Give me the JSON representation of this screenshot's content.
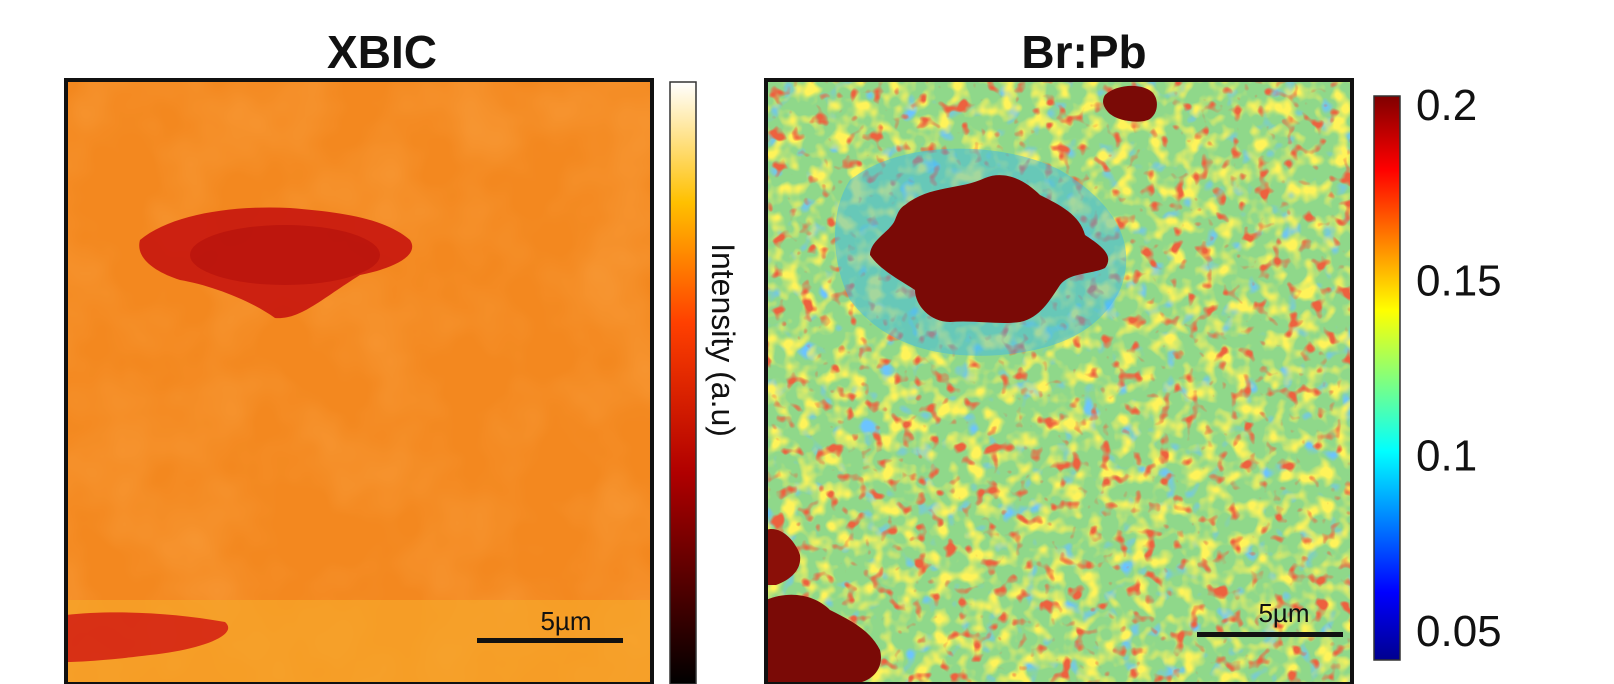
{
  "chart_data": [
    {
      "type": "heatmap",
      "title": "XBIC",
      "colormap": "hot",
      "colorbar": {
        "label": "Intensity (a.u)",
        "ticks": []
      },
      "scale_bar": "5µm"
    },
    {
      "type": "heatmap",
      "title": "Br:Pb",
      "colormap": "jet",
      "colorbar": {
        "label": "",
        "range": [
          0.05,
          0.2
        ],
        "ticks": [
          "0.2",
          "0.15",
          "0.1",
          "0.05"
        ]
      },
      "scale_bar": "5µm"
    }
  ],
  "colors": {
    "xbic_base": "#f3881f",
    "xbic_dark": "#c41a14",
    "brpb_base": "#8fd88a",
    "brpb_dark": "#7a0a06"
  }
}
